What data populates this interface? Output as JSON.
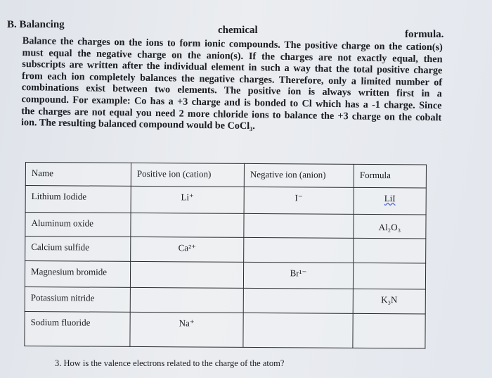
{
  "heading": {
    "left": "B. Balancing",
    "middle": "chemical",
    "right": "formula."
  },
  "paragraph_lines": [
    "Balance the charges on the ions to form ionic compounds. The positive charge on the cation(s)",
    "must equal the negative charge on the anion(s). If the charges are not exactly equal, then",
    "subscripts are written after the individual element in such a way that the total positive charge",
    "from each ion completely balances the negative charges. Therefore, only a limited number of",
    "combinations exist between two elements. The positive ion is always written first in a",
    "compound. For example: Co has a +3 charge and is bonded to Cl which has a -1 charge. Since",
    "the charges are not equal you need 2 more chloride ions to balance the +3 charge on the cobalt",
    "ion. The resulting balanced compound would be CoCl₃."
  ],
  "table": {
    "headers": [
      "Name",
      "Positive ion (cation)",
      "Negative ion (anion)",
      "Formula"
    ],
    "rows": [
      [
        "Lithium Iodide",
        "Li⁺",
        "I⁻",
        "LiI"
      ],
      [
        "Aluminum oxide",
        "",
        "",
        "Al₂O₃"
      ],
      [
        "Calcium sulfide",
        "Ca²⁺",
        "",
        ""
      ],
      [
        "Magnesium bromide",
        "",
        "Br¹⁻",
        ""
      ],
      [
        "Potassium nitride",
        "",
        "",
        "K₃N"
      ],
      [
        "Sodium fluoride",
        "Na⁺",
        "",
        ""
      ]
    ]
  },
  "question": "3. How is the valence electrons related to the charge of the atom?"
}
